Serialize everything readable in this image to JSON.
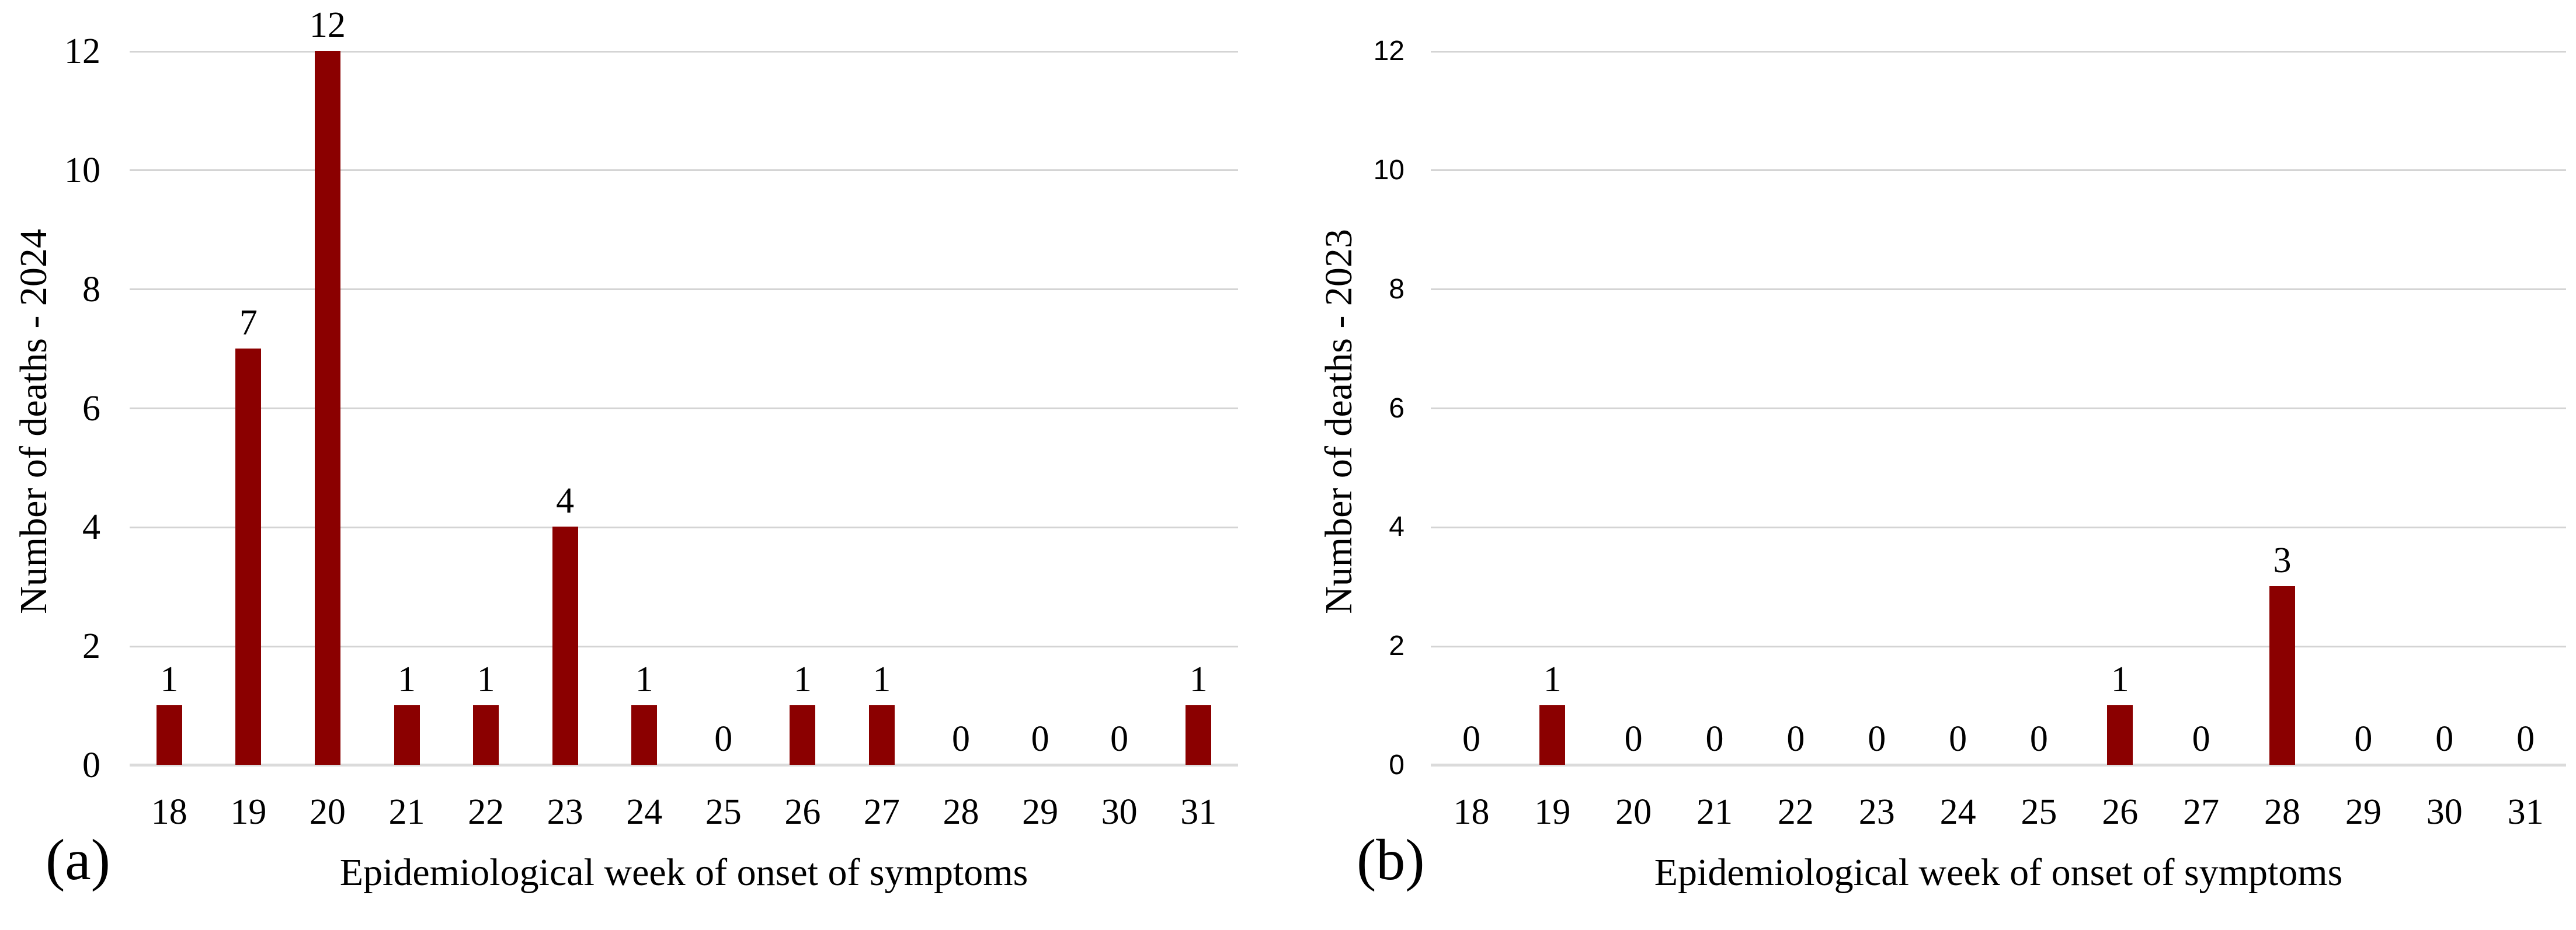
{
  "colors": {
    "bar": "#8B0000",
    "gridline": "#D4D4D4",
    "baseline": "#DBDBDB",
    "text": "#000000",
    "background": "#FFFFFF"
  },
  "chart_data": [
    {
      "type": "bar",
      "panel_label": "(a)",
      "title": "",
      "categories": [
        "18",
        "19",
        "20",
        "21",
        "22",
        "23",
        "24",
        "25",
        "26",
        "27",
        "28",
        "29",
        "30",
        "31"
      ],
      "values": [
        1,
        7,
        12,
        1,
        1,
        4,
        1,
        0,
        1,
        1,
        0,
        0,
        0,
        1
      ],
      "xlabel": "Epidemiological week of onset of symptoms",
      "ylabel": "Number of deaths - 2024",
      "ylim": [
        0,
        12
      ],
      "ytick_interval": 2,
      "yticks": [
        0,
        2,
        4,
        6,
        8,
        10,
        12
      ],
      "grid": true,
      "data_labels": true,
      "legend_position": "none"
    },
    {
      "type": "bar",
      "panel_label": "(b)",
      "title": "",
      "categories": [
        "18",
        "19",
        "20",
        "21",
        "22",
        "23",
        "24",
        "25",
        "26",
        "27",
        "28",
        "29",
        "30",
        "31"
      ],
      "values": [
        0,
        1,
        0,
        0,
        0,
        0,
        0,
        0,
        1,
        0,
        3,
        0,
        0,
        0
      ],
      "xlabel": "Epidemiological week of onset of symptoms",
      "ylabel": "Number of deaths - 2023",
      "ylim": [
        0,
        12
      ],
      "ytick_interval": 2,
      "yticks": [
        0,
        2,
        4,
        6,
        8,
        10,
        12
      ],
      "grid": true,
      "data_labels": true,
      "legend_position": "none"
    }
  ]
}
